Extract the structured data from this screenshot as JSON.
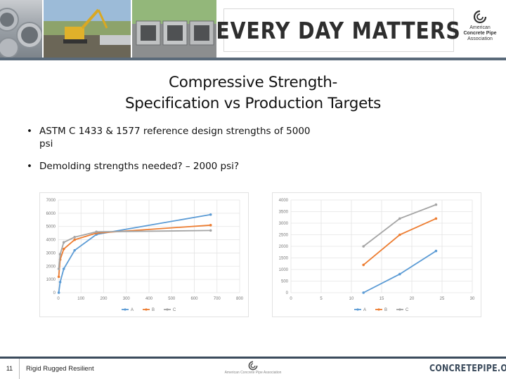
{
  "header": {
    "motto": "EVERY DAY MATTERS",
    "logo_lines": [
      "American",
      "Concrete Pipe",
      "Association"
    ]
  },
  "title_lines": [
    "Compressive Strength-",
    "Specification vs Production Targets"
  ],
  "bullets": [
    "ASTM C 1433 & 1577 reference design strengths of 5000 psi",
    "Demolding strengths needed? – 2000 psi?"
  ],
  "colors": {
    "A": "#5b9bd5",
    "B": "#ed7d31",
    "C": "#a5a5a5"
  },
  "chart_data": [
    {
      "type": "line",
      "xlim": [
        0,
        800
      ],
      "ylim": [
        0,
        7000
      ],
      "x_ticks": [
        "0",
        "100",
        "200",
        "300",
        "400",
        "500",
        "600",
        "700",
        "800"
      ],
      "y_ticks": [
        "0",
        "1000",
        "2000",
        "3000",
        "4000",
        "5000",
        "6000",
        "7000"
      ],
      "grid": true,
      "legend": "bottom",
      "series": [
        {
          "name": "A",
          "x": [
            2,
            8,
            24,
            72,
            168,
            672
          ],
          "y": [
            0,
            800,
            1800,
            3200,
            4400,
            5900
          ]
        },
        {
          "name": "B",
          "x": [
            2,
            8,
            24,
            72,
            168,
            672
          ],
          "y": [
            1200,
            2500,
            3300,
            4000,
            4500,
            5100
          ]
        },
        {
          "name": "C",
          "x": [
            2,
            8,
            24,
            72,
            168,
            672
          ],
          "y": [
            1800,
            2900,
            3800,
            4200,
            4600,
            4700
          ]
        }
      ]
    },
    {
      "type": "line",
      "xlim": [
        0,
        30
      ],
      "ylim": [
        0,
        4000
      ],
      "x_ticks": [
        "0",
        "5",
        "10",
        "15",
        "20",
        "25",
        "30"
      ],
      "y_ticks": [
        "0",
        "500",
        "1000",
        "1500",
        "2000",
        "2500",
        "3000",
        "3500",
        "4000"
      ],
      "grid": true,
      "legend": "bottom",
      "series": [
        {
          "name": "A",
          "x": [
            12,
            18,
            24
          ],
          "y": [
            0,
            800,
            1800
          ]
        },
        {
          "name": "B",
          "x": [
            12,
            18,
            24
          ],
          "y": [
            1200,
            2500,
            3200
          ]
        },
        {
          "name": "C",
          "x": [
            12,
            18,
            24
          ],
          "y": [
            2000,
            3200,
            3800
          ]
        }
      ]
    }
  ],
  "footer": {
    "slide_number": "11",
    "tagline": "Rigid Rugged Resilient",
    "logo_text": "American Concrete Pipe Association",
    "website": "CONCRETEPIPE.ORG"
  }
}
